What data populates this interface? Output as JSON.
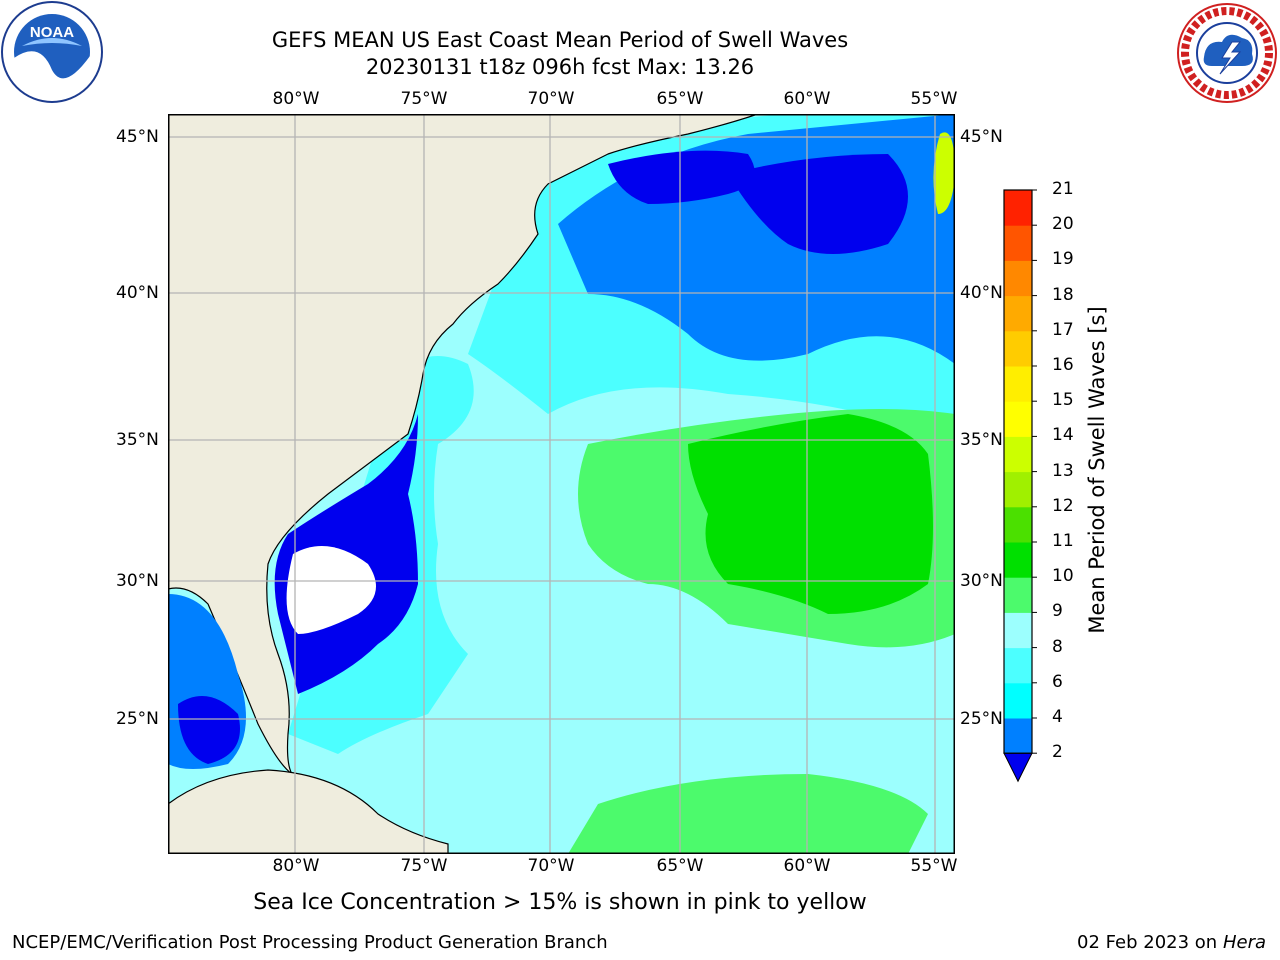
{
  "header": {
    "title_line1": "GEFS MEAN US East Coast Mean Period of Swell Waves",
    "title_line2": "20230131 t18z 096h fcst   Max: 13.26"
  },
  "logos": {
    "left": "noara-logo",
    "right": "national-weather-service-logo"
  },
  "map": {
    "lon_labels": [
      "80°W",
      "75°W",
      "70°W",
      "65°W",
      "60°W",
      "55°W"
    ],
    "lat_labels": [
      "45°N",
      "40°N",
      "35°N",
      "30°N",
      "25°N"
    ],
    "colors": {
      "land": "#efedde",
      "ocean_base": "#9cfffe",
      "band_4_6": "#00ffff",
      "band_6_8": "#4cffff",
      "band_2_4": "#0080ff",
      "below_2": "#0000ee",
      "band_9_10": "#4cfa6c",
      "band_10_11": "#00e000",
      "no_data": "#ffffff",
      "grid": "#b4b4b4"
    }
  },
  "colorbar": {
    "title": "Mean Period of Swell Waves [s]",
    "tick_labels": [
      "2",
      "4",
      "6",
      "8",
      "9",
      "10",
      "11",
      "12",
      "13",
      "14",
      "15",
      "16",
      "17",
      "18",
      "19",
      "20",
      "21"
    ],
    "colors": [
      "#0080ff",
      "#00ffff",
      "#4cffff",
      "#9cfffe",
      "#4cfa6c",
      "#00e000",
      "#4be000",
      "#a0f000",
      "#ccff00",
      "#ffff00",
      "#ffee00",
      "#ffcc00",
      "#ffaa00",
      "#ff8800",
      "#ff5500",
      "#ff2200"
    ],
    "extend_color": "#0000ee"
  },
  "footer": {
    "note": "Sea Ice Concentration > 15% is shown in pink to yellow",
    "credit": "NCEP/EMC/Verification Post Processing Product Generation Branch",
    "date": "02 Feb 2023 on",
    "machine": "Hera"
  }
}
